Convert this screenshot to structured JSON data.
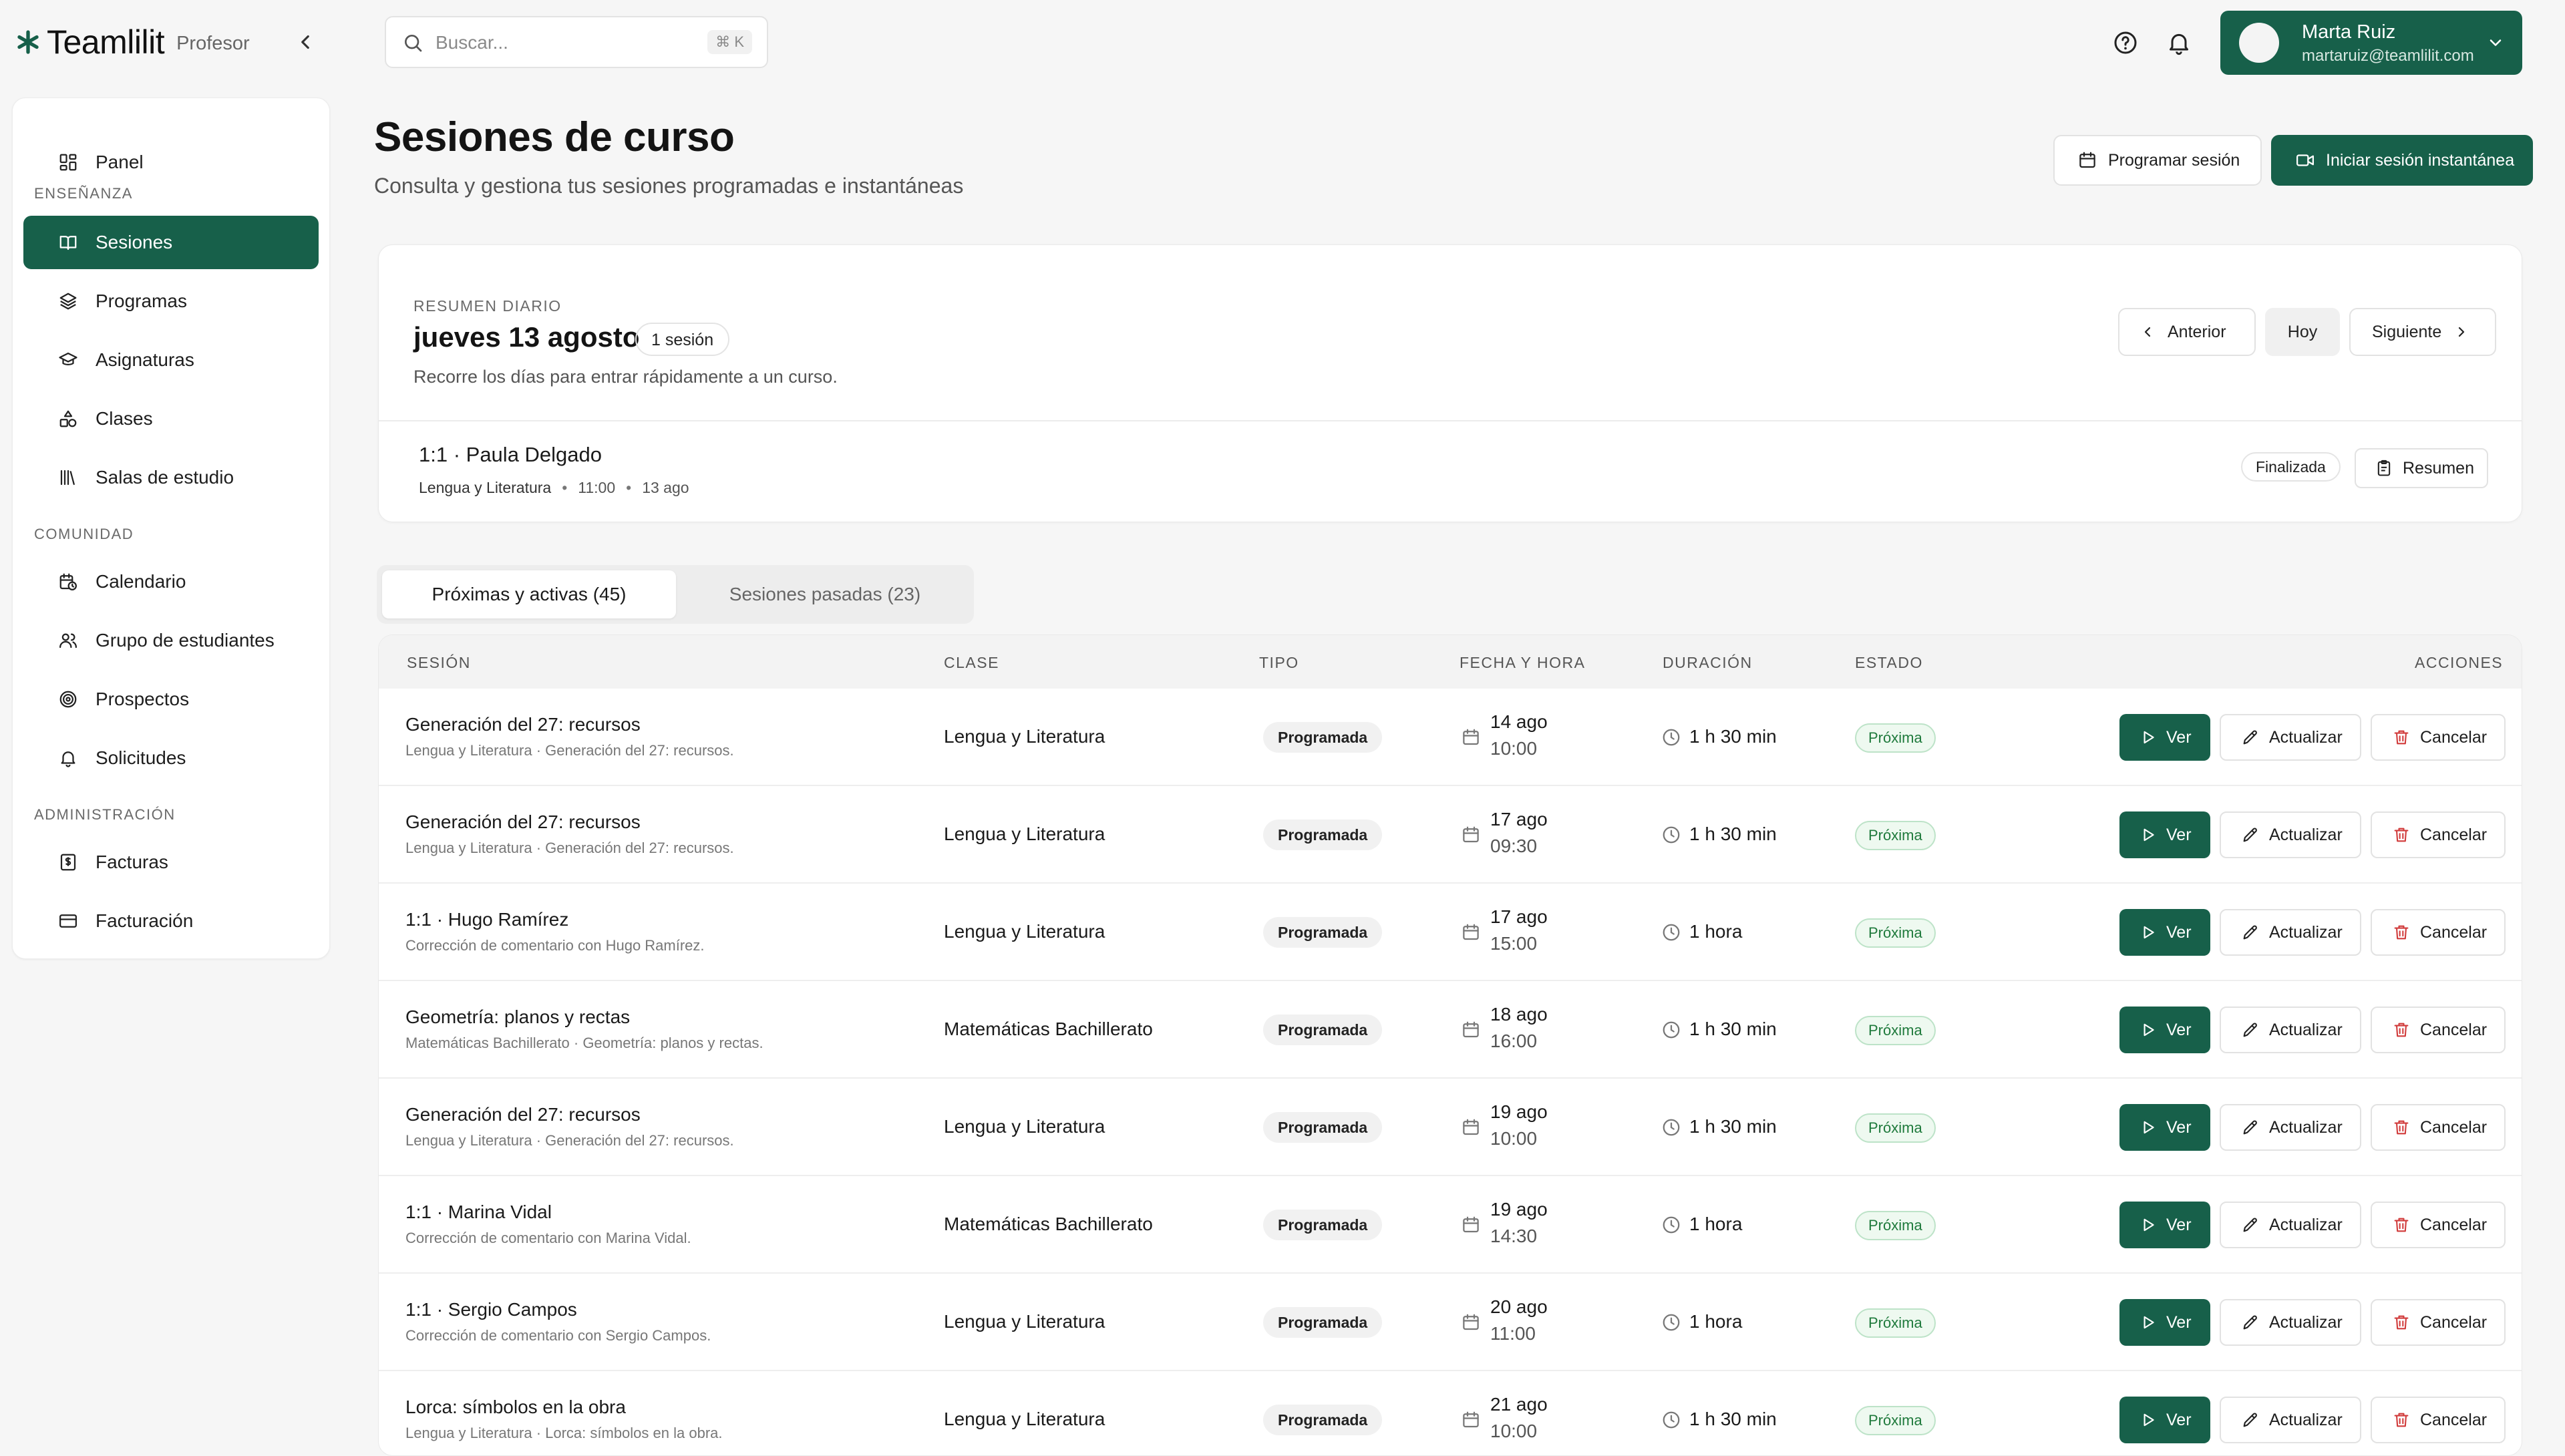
{
  "app": {
    "name": "Teamlilit",
    "role": "Profesor"
  },
  "search": {
    "placeholder": "Buscar...",
    "shortcut": "⌘ K"
  },
  "user": {
    "name": "Marta Ruiz",
    "email": "martaruiz@teamlilit.com"
  },
  "sidebar": {
    "top": [
      {
        "label": "Panel",
        "icon": "dashboard-icon"
      }
    ],
    "sections": [
      {
        "title": "ENSEÑANZA",
        "items": [
          {
            "label": "Sesiones",
            "icon": "book-open-icon",
            "active": true
          },
          {
            "label": "Programas",
            "icon": "layers-icon"
          },
          {
            "label": "Asignaturas",
            "icon": "graduation-cap-icon"
          },
          {
            "label": "Clases",
            "icon": "shapes-icon"
          },
          {
            "label": "Salas de estudio",
            "icon": "library-icon"
          }
        ]
      },
      {
        "title": "COMUNIDAD",
        "items": [
          {
            "label": "Calendario",
            "icon": "calendar-clock-icon"
          },
          {
            "label": "Grupo de estudiantes",
            "icon": "users-icon"
          },
          {
            "label": "Prospectos",
            "icon": "target-icon"
          },
          {
            "label": "Solicitudes",
            "icon": "bell-icon"
          }
        ]
      },
      {
        "title": "ADMINISTRACIÓN",
        "items": [
          {
            "label": "Facturas",
            "icon": "receipt-icon"
          },
          {
            "label": "Facturación",
            "icon": "credit-card-icon"
          }
        ]
      }
    ]
  },
  "page": {
    "title": "Sesiones de curso",
    "subtitle": "Consulta y gestiona tus sesiones programadas e instantáneas",
    "schedule_label": "Programar sesión",
    "instant_label": "Iniciar sesión instantánea"
  },
  "summary": {
    "eyebrow": "RESUMEN DIARIO",
    "date": "jueves 13 agosto",
    "count": "1 sesión",
    "help": "Recorre los días para entrar rápidamente a un curso.",
    "prev_label": "Anterior",
    "today_label": "Hoy",
    "next_label": "Siguiente",
    "session": {
      "title": "1:1 · Paula Delgado",
      "class": "Lengua y Literatura",
      "time": "11:00",
      "date": "13 ago",
      "status": "Finalizada",
      "summary_label": "Resumen"
    }
  },
  "tabs": [
    {
      "label": "Próximas y activas (45)",
      "active": true
    },
    {
      "label": "Sesiones pasadas (23)",
      "active": false
    }
  ],
  "table": {
    "headers": [
      "SESIÓN",
      "CLASE",
      "TIPO",
      "FECHA Y HORA",
      "DURACIÓN",
      "ESTADO",
      "ACCIONES"
    ],
    "action_labels": {
      "view": "Ver",
      "update": "Actualizar",
      "cancel": "Cancelar"
    },
    "rows": [
      {
        "title": "Generación del 27: recursos",
        "subtitle": "Lengua y Literatura · Generación del 27: recursos.",
        "class": "Lengua y Literatura",
        "type": "Programada",
        "date": "14 ago",
        "time": "10:00",
        "duration": "1 h 30 min",
        "status": "Próxima"
      },
      {
        "title": "Generación del 27: recursos",
        "subtitle": "Lengua y Literatura · Generación del 27: recursos.",
        "class": "Lengua y Literatura",
        "type": "Programada",
        "date": "17 ago",
        "time": "09:30",
        "duration": "1 h 30 min",
        "status": "Próxima"
      },
      {
        "title": "1:1 · Hugo Ramírez",
        "subtitle": "Corrección de comentario con Hugo Ramírez.",
        "class": "Lengua y Literatura",
        "type": "Programada",
        "date": "17 ago",
        "time": "15:00",
        "duration": "1 hora",
        "status": "Próxima"
      },
      {
        "title": "Geometría: planos y rectas",
        "subtitle": "Matemáticas Bachillerato · Geometría: planos y rectas.",
        "class": "Matemáticas Bachillerato",
        "type": "Programada",
        "date": "18 ago",
        "time": "16:00",
        "duration": "1 h 30 min",
        "status": "Próxima"
      },
      {
        "title": "Generación del 27: recursos",
        "subtitle": "Lengua y Literatura · Generación del 27: recursos.",
        "class": "Lengua y Literatura",
        "type": "Programada",
        "date": "19 ago",
        "time": "10:00",
        "duration": "1 h 30 min",
        "status": "Próxima"
      },
      {
        "title": "1:1 · Marina Vidal",
        "subtitle": "Corrección de comentario con Marina Vidal.",
        "class": "Matemáticas Bachillerato",
        "type": "Programada",
        "date": "19 ago",
        "time": "14:30",
        "duration": "1 hora",
        "status": "Próxima"
      },
      {
        "title": "1:1 · Sergio Campos",
        "subtitle": "Corrección de comentario con Sergio Campos.",
        "class": "Lengua y Literatura",
        "type": "Programada",
        "date": "20 ago",
        "time": "11:00",
        "duration": "1 hora",
        "status": "Próxima"
      },
      {
        "title": "Lorca: símbolos en la obra",
        "subtitle": "Lengua y Literatura · Lorca: símbolos en la obra.",
        "class": "Lengua y Literatura",
        "type": "Programada",
        "date": "21 ago",
        "time": "10:00",
        "duration": "1 h 30 min",
        "status": "Próxima"
      }
    ]
  },
  "colors": {
    "brand": "#17604a",
    "status_upcoming": "#1f7a3c",
    "danger": "#d13b3b"
  }
}
